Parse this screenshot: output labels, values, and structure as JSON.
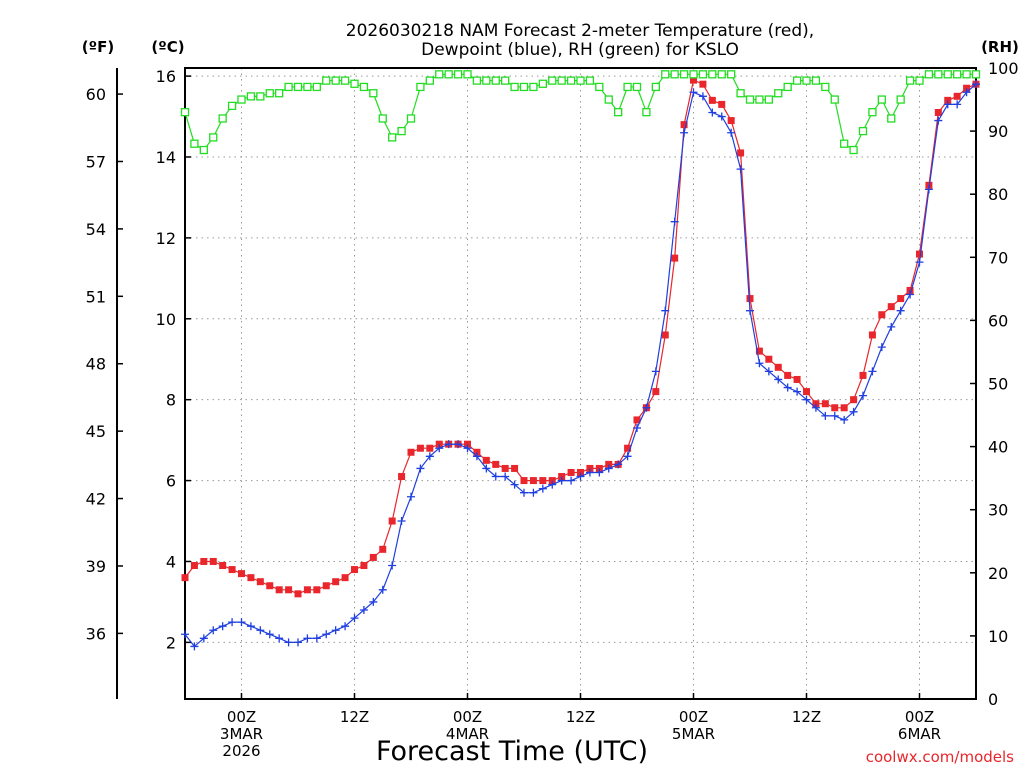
{
  "chart_data": {
    "type": "line",
    "title": {
      "line1": "2026030218 NAM Forecast 2-meter Temperature (red),",
      "line2": "Dewpoint (blue), RH (green) for KSLO"
    },
    "units": {
      "fahrenheit": "(ºF)",
      "celsius": "(ºC)",
      "rh": "(RH)"
    },
    "xlabel": "Forecast Time (UTC)",
    "credit": "coolwx.com/models",
    "x_unit": "hours since 2026-03-02 18Z",
    "xlim": [
      0,
      84
    ],
    "x_ticks": [
      {
        "hour": 6,
        "labels": [
          "00Z",
          "3MAR",
          "2026"
        ]
      },
      {
        "hour": 18,
        "labels": [
          "12Z"
        ]
      },
      {
        "hour": 30,
        "labels": [
          "00Z",
          "4MAR"
        ]
      },
      {
        "hour": 42,
        "labels": [
          "12Z"
        ]
      },
      {
        "hour": 54,
        "labels": [
          "00Z",
          "5MAR"
        ]
      },
      {
        "hour": 66,
        "labels": [
          "12Z"
        ]
      },
      {
        "hour": 78,
        "labels": [
          "00Z",
          "6MAR"
        ]
      }
    ],
    "ylim_c": [
      0.6,
      16.2
    ],
    "y_ticks_c": [
      "2",
      "4",
      "6",
      "8",
      "10",
      "12",
      "14",
      "16"
    ],
    "y_ticks_f": [
      "36",
      "39",
      "42",
      "45",
      "48",
      "51",
      "54",
      "57",
      "60"
    ],
    "ylim_rh": [
      0,
      100
    ],
    "y_ticks_rh": [
      "0",
      "10",
      "20",
      "30",
      "40",
      "50",
      "60",
      "70",
      "80",
      "90",
      "100"
    ],
    "series": [
      {
        "name": "Temperature",
        "axis": "celsius",
        "color": "#e8262c",
        "marker": "filled-square",
        "x": [
          0,
          1,
          2,
          3,
          4,
          5,
          6,
          7,
          8,
          9,
          10,
          11,
          12,
          13,
          14,
          15,
          16,
          17,
          18,
          19,
          20,
          21,
          22,
          23,
          24,
          25,
          26,
          27,
          28,
          29,
          30,
          31,
          32,
          33,
          34,
          35,
          36,
          37,
          38,
          39,
          40,
          41,
          42,
          43,
          44,
          45,
          46,
          47,
          48,
          49,
          50,
          51,
          52,
          53,
          54,
          55,
          56,
          57,
          58,
          59,
          60,
          61,
          62,
          63,
          64,
          65,
          66,
          67,
          68,
          69,
          70,
          71,
          72,
          73,
          74,
          75,
          76,
          77,
          78,
          79,
          80,
          81,
          82,
          83,
          84
        ],
        "values": [
          3.6,
          3.9,
          4.0,
          4.0,
          3.9,
          3.8,
          3.7,
          3.6,
          3.5,
          3.4,
          3.3,
          3.3,
          3.2,
          3.3,
          3.3,
          3.4,
          3.5,
          3.6,
          3.8,
          3.9,
          4.1,
          4.3,
          5.0,
          6.1,
          6.7,
          6.8,
          6.8,
          6.9,
          6.9,
          6.9,
          6.9,
          6.7,
          6.5,
          6.4,
          6.3,
          6.3,
          6.0,
          6.0,
          6.0,
          6.0,
          6.1,
          6.2,
          6.2,
          6.3,
          6.3,
          6.4,
          6.4,
          6.8,
          7.5,
          7.8,
          8.2,
          9.6,
          11.5,
          14.8,
          15.9,
          15.8,
          15.4,
          15.3,
          14.9,
          14.1,
          10.5,
          9.2,
          9.0,
          8.8,
          8.6,
          8.5,
          8.2,
          7.9,
          7.9,
          7.8,
          7.8,
          8.0,
          8.6,
          9.6,
          10.1,
          10.3,
          10.5,
          10.7,
          11.6,
          13.3,
          15.1,
          15.4,
          15.5,
          15.7,
          15.8
        ]
      },
      {
        "name": "Dewpoint",
        "axis": "celsius",
        "color": "#1f3fe0",
        "marker": "plus",
        "x": [
          0,
          1,
          2,
          3,
          4,
          5,
          6,
          7,
          8,
          9,
          10,
          11,
          12,
          13,
          14,
          15,
          16,
          17,
          18,
          19,
          20,
          21,
          22,
          23,
          24,
          25,
          26,
          27,
          28,
          29,
          30,
          31,
          32,
          33,
          34,
          35,
          36,
          37,
          38,
          39,
          40,
          41,
          42,
          43,
          44,
          45,
          46,
          47,
          48,
          49,
          50,
          51,
          52,
          53,
          54,
          55,
          56,
          57,
          58,
          59,
          60,
          61,
          62,
          63,
          64,
          65,
          66,
          67,
          68,
          69,
          70,
          71,
          72,
          73,
          74,
          75,
          76,
          77,
          78,
          79,
          80,
          81,
          82,
          83,
          84
        ],
        "values": [
          2.2,
          1.9,
          2.1,
          2.3,
          2.4,
          2.5,
          2.5,
          2.4,
          2.3,
          2.2,
          2.1,
          2.0,
          2.0,
          2.1,
          2.1,
          2.2,
          2.3,
          2.4,
          2.6,
          2.8,
          3.0,
          3.3,
          3.9,
          5.0,
          5.6,
          6.3,
          6.6,
          6.8,
          6.9,
          6.9,
          6.8,
          6.6,
          6.3,
          6.1,
          6.1,
          5.9,
          5.7,
          5.7,
          5.8,
          5.9,
          6.0,
          6.0,
          6.1,
          6.2,
          6.2,
          6.3,
          6.4,
          6.6,
          7.3,
          7.8,
          8.7,
          10.2,
          12.4,
          14.6,
          15.6,
          15.5,
          15.1,
          15.0,
          14.6,
          13.7,
          10.2,
          8.9,
          8.7,
          8.5,
          8.3,
          8.2,
          8.0,
          7.8,
          7.6,
          7.6,
          7.5,
          7.7,
          8.1,
          8.7,
          9.3,
          9.8,
          10.2,
          10.6,
          11.4,
          13.2,
          14.9,
          15.3,
          15.3,
          15.6,
          15.8
        ]
      },
      {
        "name": "RH",
        "axis": "rh",
        "color": "#22dd22",
        "marker": "open-square",
        "x": [
          0,
          1,
          2,
          3,
          4,
          5,
          6,
          7,
          8,
          9,
          10,
          11,
          12,
          13,
          14,
          15,
          16,
          17,
          18,
          19,
          20,
          21,
          22,
          23,
          24,
          25,
          26,
          27,
          28,
          29,
          30,
          31,
          32,
          33,
          34,
          35,
          36,
          37,
          38,
          39,
          40,
          41,
          42,
          43,
          44,
          45,
          46,
          47,
          48,
          49,
          50,
          51,
          52,
          53,
          54,
          55,
          56,
          57,
          58,
          59,
          60,
          61,
          62,
          63,
          64,
          65,
          66,
          67,
          68,
          69,
          70,
          71,
          72,
          73,
          74,
          75,
          76,
          77,
          78,
          79,
          80,
          81,
          82,
          83,
          84
        ],
        "values": [
          93,
          88,
          87,
          89,
          92,
          94,
          95,
          95.5,
          95.5,
          96,
          96,
          97,
          97,
          97,
          97,
          98,
          98,
          98,
          97.5,
          97,
          96,
          92,
          89,
          90,
          92,
          97,
          98,
          99,
          99,
          99,
          99,
          98,
          98,
          98,
          98,
          97,
          97,
          97,
          97.5,
          98,
          98,
          98,
          98,
          98,
          97,
          95,
          93,
          97,
          97,
          93,
          97,
          99,
          99,
          99,
          99,
          99,
          99,
          99,
          99,
          96,
          95,
          95,
          95,
          96,
          97,
          98,
          98,
          98,
          97,
          95,
          88,
          87,
          90,
          93,
          95,
          92,
          95,
          98,
          98,
          99,
          99,
          99,
          99,
          99,
          99
        ]
      }
    ]
  }
}
